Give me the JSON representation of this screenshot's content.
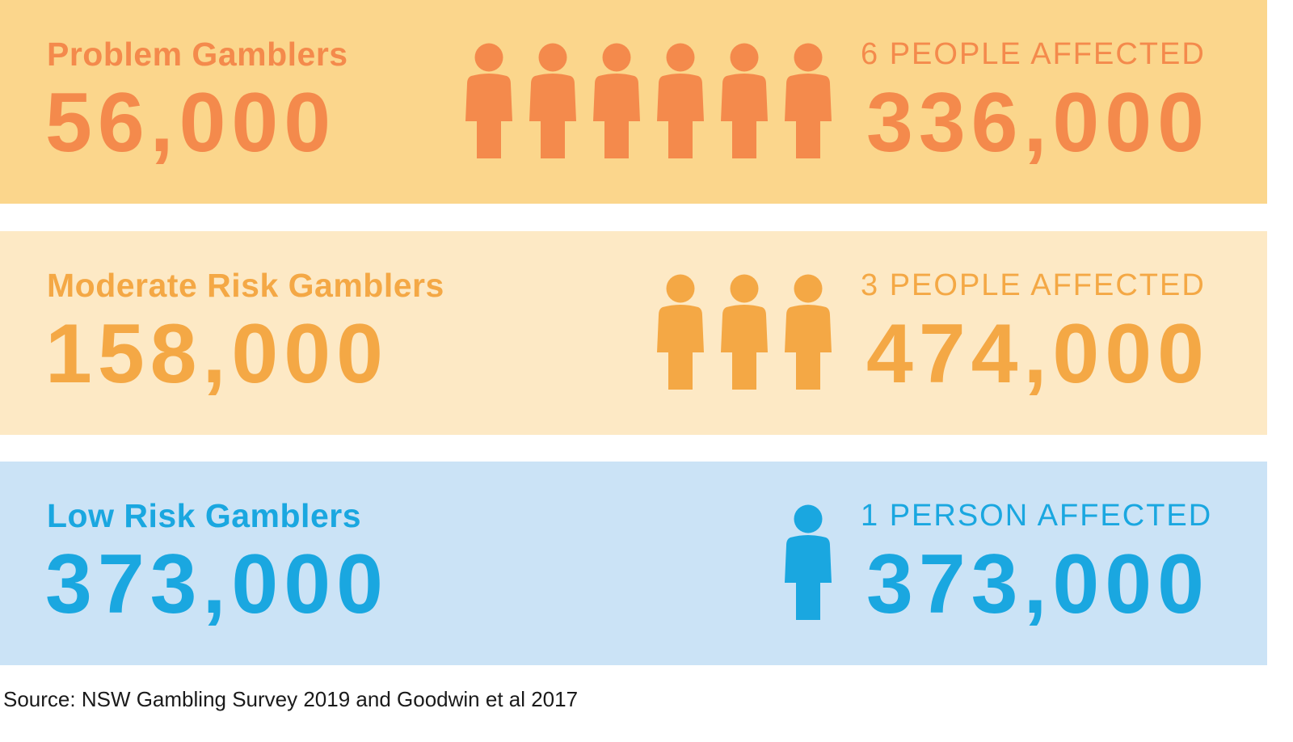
{
  "rows": [
    {
      "label": "Problem Gamblers",
      "count": "56,000",
      "affected_label": "6 PEOPLE AFFECTED",
      "affected_count": "336,000",
      "people_icons": 6,
      "background": "#fbd68c",
      "color": "#f48a4c"
    },
    {
      "label": "Moderate Risk Gamblers",
      "count": "158,000",
      "affected_label": "3 PEOPLE AFFECTED",
      "affected_count": "474,000",
      "people_icons": 3,
      "background": "#fde9c5",
      "color": "#f4a845"
    },
    {
      "label": "Low Risk Gamblers",
      "count": "373,000",
      "affected_label": "1 PERSON AFFECTED",
      "affected_count": "373,000",
      "people_icons": 1,
      "background": "#cbe3f6",
      "color": "#1aa7e0"
    }
  ],
  "source": "Source: NSW Gambling Survey 2019 and Goodwin et al 2017"
}
